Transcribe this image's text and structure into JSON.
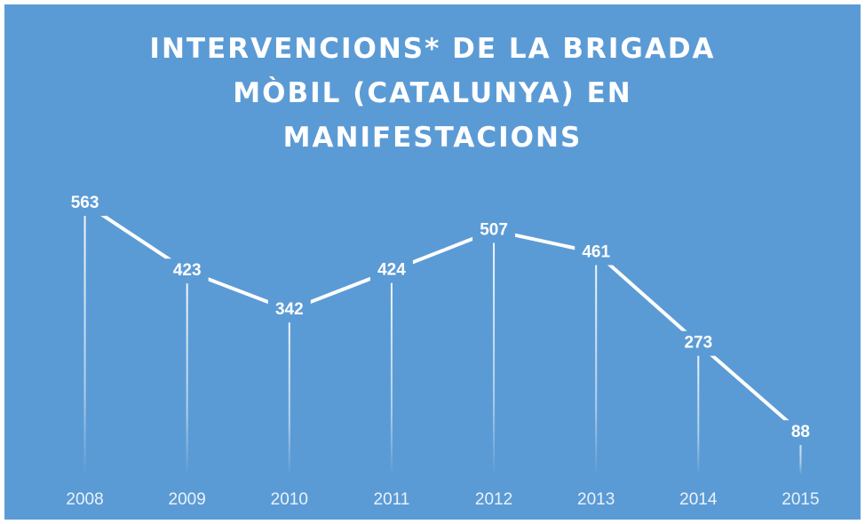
{
  "chart_data": {
    "type": "line",
    "title": "INTERVENCIONS* DE LA BRIGADA MÒBIL (CATALUNYA) EN MANIFESTACIONS",
    "categories": [
      "2008",
      "2009",
      "2010",
      "2011",
      "2012",
      "2013",
      "2014",
      "2015"
    ],
    "values": [
      563,
      423,
      342,
      424,
      507,
      461,
      273,
      88
    ],
    "color": "#ffffff",
    "ylim": [
      0,
      600
    ],
    "drop_lines": true,
    "grid": false
  }
}
